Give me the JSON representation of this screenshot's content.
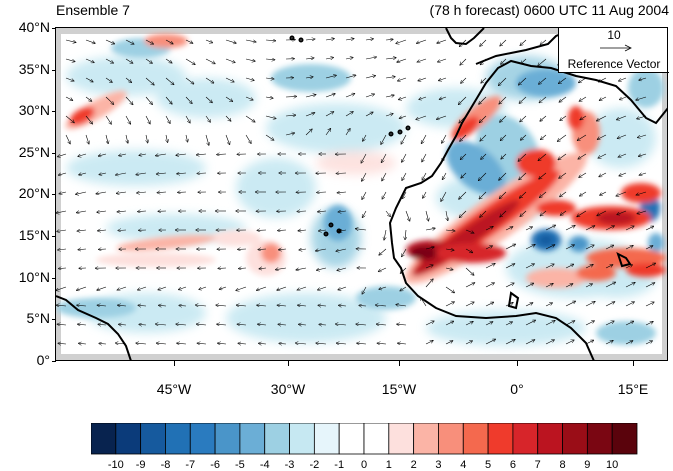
{
  "title_left": "Ensemble 7",
  "title_right": "(78 h forecast) 0600 UTC 11 Aug 2004",
  "lat_labels": [
    "40°N",
    "35°N",
    "30°N",
    "25°N",
    "20°N",
    "15°N",
    "10°N",
    "5°N",
    "0°"
  ],
  "lon_labels": [
    "45°W",
    "30°W",
    "15°W",
    "0°",
    "15°E"
  ],
  "reference_vector": {
    "magnitude": "10",
    "label": "Reference Vector"
  },
  "colorbar": {
    "labels": [
      "-10",
      "-9",
      "-8",
      "-7",
      "-6",
      "-5",
      "-4",
      "-3",
      "-2",
      "-1",
      "0",
      "1",
      "2",
      "3",
      "4",
      "5",
      "6",
      "7",
      "8",
      "9",
      "10"
    ],
    "colors": [
      "#08234f",
      "#0b3b7a",
      "#165a9e",
      "#2171b5",
      "#2a7bbf",
      "#4a95c9",
      "#6baed6",
      "#9dd0e3",
      "#c6e8f2",
      "#e6f5fb",
      "#ffffff",
      "#ffffff",
      "#fde0dd",
      "#fbb4a6",
      "#f88f7b",
      "#f4694e",
      "#ef3b2c",
      "#d7252a",
      "#bb1420",
      "#9a0d17",
      "#7a0612",
      "#5a030c"
    ]
  },
  "map": {
    "domain": {
      "lon_min": -58,
      "lon_max": 20,
      "lat_min": 0,
      "lat_max": 40
    },
    "colors": {
      "coast": "#000000",
      "missing": "#bdbdbd",
      "arrow": "#000000"
    }
  }
}
